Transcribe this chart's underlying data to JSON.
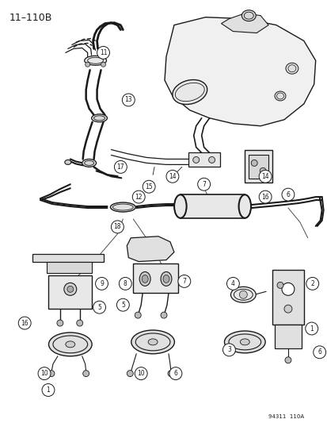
{
  "title_label": "11–110B",
  "figure_code": "94311  110A",
  "bg_color": "#ffffff",
  "line_color": "#1a1a1a",
  "fig_width": 4.14,
  "fig_height": 5.33,
  "dpi": 100
}
